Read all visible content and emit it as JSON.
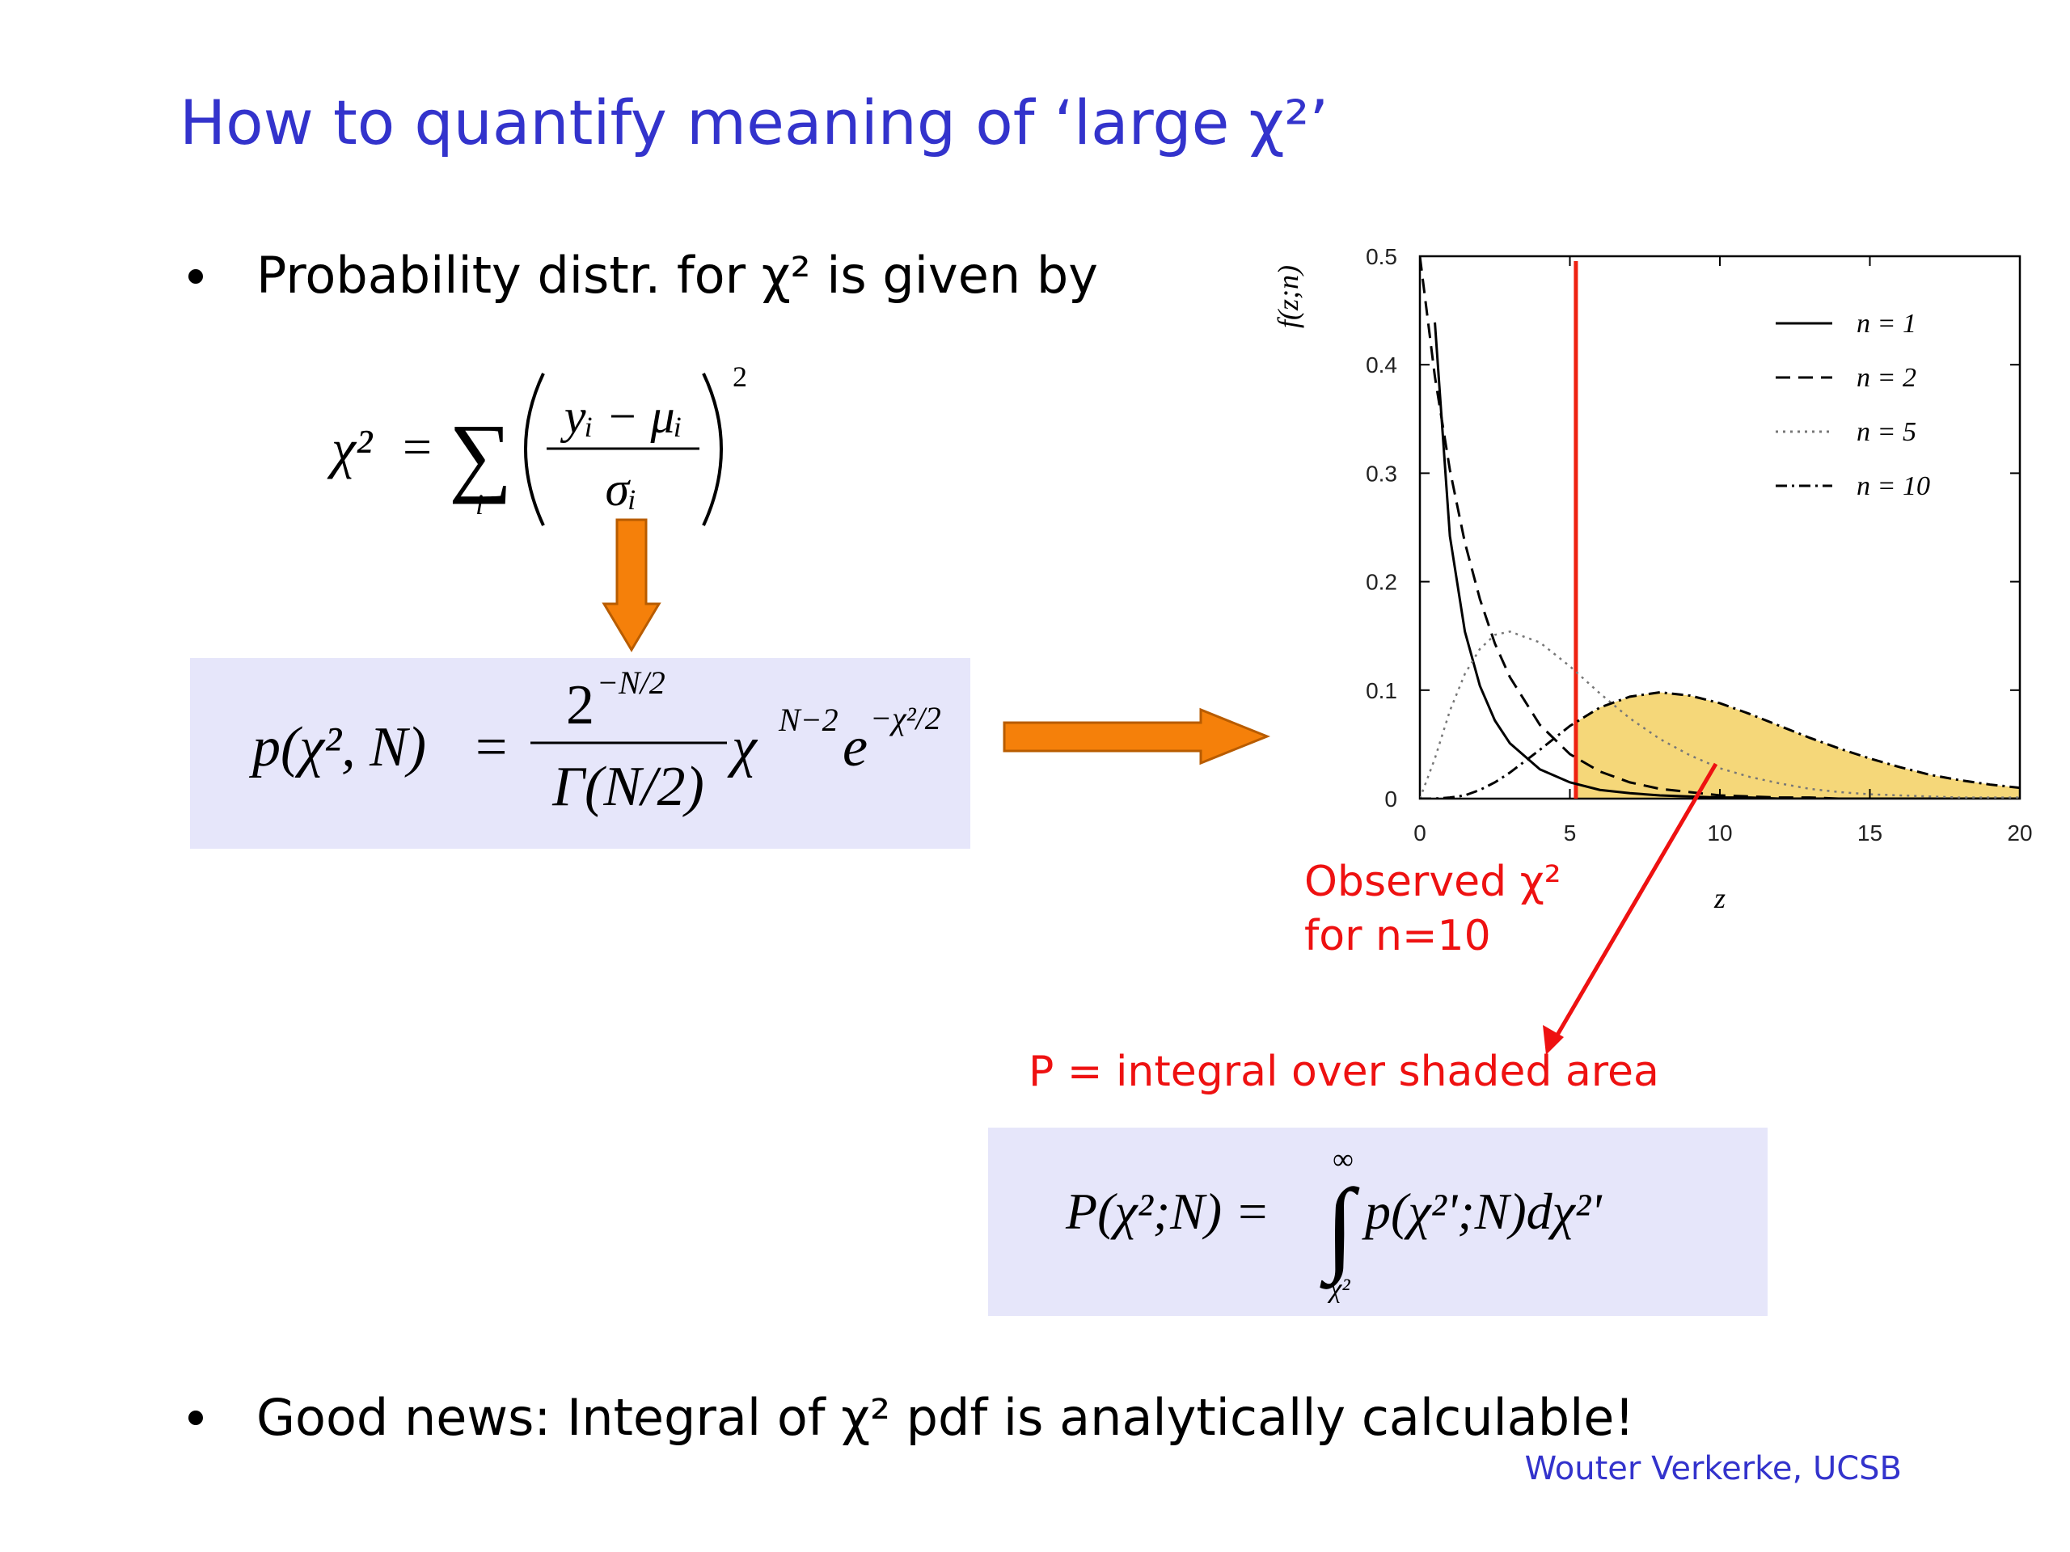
{
  "title": "How to quantify meaning of ‘large χ²’",
  "bullets": [
    "Probability distr. for χ² is given by",
    "Good news: Integral of χ² pdf is analytically calculable!"
  ],
  "formula_1": {
    "lhs": "χ²",
    "equals": "=",
    "sum": "∑",
    "index": "i",
    "numerator": "yᵢ − μᵢ",
    "denominator": "σᵢ",
    "power": "2"
  },
  "formula_2": {
    "lhs": "p(χ², N)",
    "equals": "=",
    "numerator": "2",
    "numerator_exp": "−N/2",
    "denominator": "Γ(N/2)",
    "chi": "χ",
    "chi_exp": "N−2",
    "e": "e",
    "e_exp": "−χ²/2"
  },
  "formula_3": {
    "lhs": "P(χ²;N) =",
    "integral": "∫",
    "upper": "∞",
    "lower": "χ²",
    "integrand": "p(χ²';N)dχ²'"
  },
  "annotations": {
    "observed": [
      "Observed χ²",
      "for n=10"
    ],
    "p_value": "P = integral over shaded area"
  },
  "footer": "Wouter Verkerke, UCSB",
  "chart_data": {
    "type": "line",
    "x_label": "z",
    "y_label": "f(z;n)",
    "x": [
      0,
      0.5,
      1,
      1.5,
      2,
      2.5,
      3,
      4,
      5,
      6,
      7,
      8,
      9,
      10,
      11,
      12,
      13,
      14,
      15,
      16,
      17,
      18,
      19,
      20
    ],
    "series": [
      {
        "name": "n = 1",
        "color": "#000000",
        "dash": "solid",
        "values": [
          null,
          0.439,
          0.242,
          0.154,
          0.104,
          0.072,
          0.051,
          0.027,
          0.015,
          0.008,
          0.005,
          0.003,
          0.002,
          0.001,
          0.001,
          0,
          0,
          0,
          0,
          0,
          0,
          0,
          0,
          0
        ]
      },
      {
        "name": "n = 2",
        "color": "#000000",
        "dash": "dashed",
        "values": [
          0.5,
          0.389,
          0.303,
          0.236,
          0.184,
          0.143,
          0.112,
          0.068,
          0.041,
          0.025,
          0.015,
          0.009,
          0.006,
          0.003,
          0.002,
          0.001,
          0.001,
          0,
          0,
          0,
          0,
          0,
          0,
          0
        ]
      },
      {
        "name": "n = 5",
        "color": "#777777",
        "dash": "dotted",
        "values": [
          0,
          0.037,
          0.081,
          0.115,
          0.138,
          0.151,
          0.154,
          0.144,
          0.122,
          0.097,
          0.074,
          0.055,
          0.04,
          0.028,
          0.02,
          0.014,
          0.009,
          0.006,
          0.004,
          0.003,
          0.002,
          0.001,
          0.001,
          0.001
        ]
      },
      {
        "name": "n = 10",
        "color": "#000000",
        "dash": "dashdot",
        "values": [
          0,
          0,
          0.001,
          0.003,
          0.008,
          0.015,
          0.024,
          0.045,
          0.067,
          0.084,
          0.094,
          0.098,
          0.095,
          0.088,
          0.078,
          0.067,
          0.056,
          0.046,
          0.037,
          0.029,
          0.022,
          0.017,
          0.013,
          0.01
        ]
      }
    ],
    "xlim": [
      0,
      20
    ],
    "xticks": [
      0,
      5,
      10,
      15,
      20
    ],
    "ylim": [
      0,
      0.5
    ],
    "yticks": [
      0,
      0.1,
      0.2,
      0.3,
      0.4,
      0.5
    ],
    "marker_x": 5.2,
    "marker_color": "#ee2211",
    "shade_series": 3,
    "shade_color": "#f2c94c",
    "legend": "top-right"
  }
}
